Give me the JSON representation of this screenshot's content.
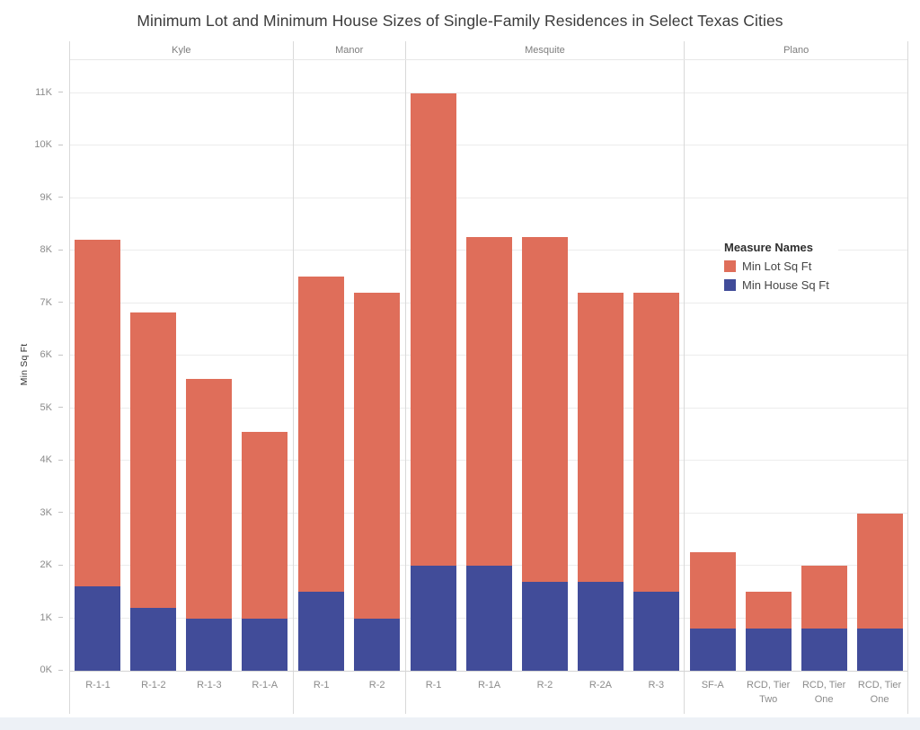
{
  "title": "Minimum Lot and Minimum House Sizes of Single-Family Residences in Select Texas Cities",
  "y_axis": {
    "label": "Min Sq Ft",
    "ticks": [
      "0K",
      "1K",
      "2K",
      "3K",
      "4K",
      "5K",
      "6K",
      "7K",
      "8K",
      "9K",
      "10K",
      "11K"
    ]
  },
  "legend": {
    "title": "Measure Names",
    "items": [
      {
        "label": "Min Lot Sq Ft",
        "color": "#DF6E5A"
      },
      {
        "label": "Min House Sq Ft",
        "color": "#414C99"
      }
    ]
  },
  "colors": {
    "min_lot": "#DF6E5A",
    "min_house": "#414C99",
    "bottom_strip": "#EDF1F6"
  },
  "chart_data": {
    "type": "bar",
    "stacked": true,
    "title": "Minimum Lot and Minimum House Sizes of Single-Family Residences in Select Texas Cities",
    "xlabel": "",
    "ylabel": "Min Sq Ft",
    "ylim": [
      0,
      11600
    ],
    "y_tick_interval": 1000,
    "grid": true,
    "legend_position": "inside-right",
    "series_names": [
      "Min Lot Sq Ft",
      "Min House Sq Ft"
    ],
    "groups": [
      {
        "city": "Kyle",
        "bars": [
          {
            "zone": "R-1-1",
            "min_lot_sq_ft": 8200,
            "min_house_sq_ft": 1600
          },
          {
            "zone": "R-1-2",
            "min_lot_sq_ft": 6825,
            "min_house_sq_ft": 1200
          },
          {
            "zone": "R-1-3",
            "min_lot_sq_ft": 5550,
            "min_house_sq_ft": 1000
          },
          {
            "zone": "R-1-A",
            "min_lot_sq_ft": 4550,
            "min_house_sq_ft": 1000
          }
        ]
      },
      {
        "city": "Manor",
        "bars": [
          {
            "zone": "R-1",
            "min_lot_sq_ft": 7500,
            "min_house_sq_ft": 1500
          },
          {
            "zone": "R-2",
            "min_lot_sq_ft": 7200,
            "min_house_sq_ft": 1000
          }
        ]
      },
      {
        "city": "Mesquite",
        "bars": [
          {
            "zone": "R-1",
            "min_lot_sq_ft": 11000,
            "min_house_sq_ft": 2000
          },
          {
            "zone": "R-1A",
            "min_lot_sq_ft": 8250,
            "min_house_sq_ft": 2000
          },
          {
            "zone": "R-2",
            "min_lot_sq_ft": 8250,
            "min_house_sq_ft": 1700
          },
          {
            "zone": "R-2A",
            "min_lot_sq_ft": 7200,
            "min_house_sq_ft": 1700
          },
          {
            "zone": "R-3",
            "min_lot_sq_ft": 7200,
            "min_house_sq_ft": 1500
          }
        ]
      },
      {
        "city": "Plano",
        "bars": [
          {
            "zone": "SF-A",
            "min_lot_sq_ft": 2250,
            "min_house_sq_ft": 800
          },
          {
            "zone": "RCD, Tier Two",
            "min_lot_sq_ft": 1500,
            "min_house_sq_ft": 800
          },
          {
            "zone": "RCD, Tier One",
            "min_lot_sq_ft": 2000,
            "min_house_sq_ft": 800
          },
          {
            "zone": "RCD, Tier One",
            "min_lot_sq_ft": 3000,
            "min_house_sq_ft": 800
          }
        ]
      }
    ]
  }
}
